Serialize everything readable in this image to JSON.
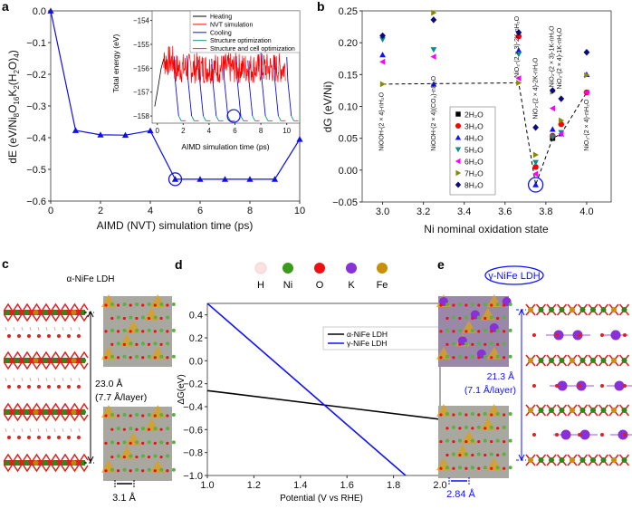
{
  "panels": {
    "a": "a",
    "b": "b",
    "c": "c",
    "d": "d",
    "e": "e"
  },
  "chart_data": [
    {
      "id": "a",
      "type": "line",
      "xlabel": "AIMD (NVT) simulation time (ps)",
      "ylabel": "dE (eV/Ni8O16K2(H2O)4)",
      "ylabel_parts": [
        "dE (eV/Ni",
        "8",
        "O",
        "16",
        "K",
        "2",
        "(H",
        "2",
        "O)",
        "4",
        ")"
      ],
      "xlim": [
        0,
        10
      ],
      "ylim": [
        -0.6,
        0.0
      ],
      "xticks": [
        "0",
        "2",
        "4",
        "6",
        "8",
        "10"
      ],
      "yticks": [
        "0.0",
        "−0.1",
        "−0.2",
        "−0.3",
        "−0.4",
        "−0.5",
        "−0.6"
      ],
      "color": "#1010e0",
      "x": [
        0,
        1,
        2,
        3,
        4,
        5,
        6,
        7,
        8,
        9,
        10
      ],
      "y": [
        0.0,
        -0.377,
        -0.391,
        -0.392,
        -0.378,
        -0.531,
        -0.531,
        -0.531,
        -0.531,
        -0.531,
        -0.405
      ],
      "highlight": {
        "x": 5,
        "y": -0.531
      },
      "inset": {
        "type": "line",
        "xlabel": "AIMD simulation time (ps)",
        "ylabel": "Total energy (eV)",
        "xlim": [
          -0.4,
          11
        ],
        "ylim": [
          -158.3,
          -153.6
        ],
        "xticks": [
          "0",
          "2",
          "4",
          "6",
          "8",
          "10"
        ],
        "yticks": [
          "−154",
          "−155",
          "−156",
          "−157",
          "−158"
        ],
        "legend": [
          {
            "label": "Heating",
            "color": "#000000"
          },
          {
            "label": "NVT simulation",
            "color": "#ff0000"
          },
          {
            "label": "Cooling",
            "color": "#1010e0"
          },
          {
            "label": "Structure optimization",
            "color": "#109090"
          },
          {
            "label": "Structure and cell optimization",
            "color": "#ff00ff"
          }
        ],
        "cycle_starts_ps": [
          1.3,
          2.3,
          3.2,
          4.2,
          5.1,
          6.1,
          7.0,
          8.0,
          9.0,
          10.0
        ],
        "nvt_mean": -156.0,
        "final_energy": -158.2,
        "highlight": {
          "x": 5.9,
          "y": -158.0
        }
      }
    },
    {
      "id": "b",
      "type": "scatter",
      "xlabel": "Ni nominal oxidation state",
      "ylabel": "dG (eV/Ni)",
      "xlim": [
        2.9,
        4.12
      ],
      "ylim": [
        -0.05,
        0.25
      ],
      "xticks": [
        "3.0",
        "3.2",
        "3.4",
        "3.6",
        "3.8",
        "4.0"
      ],
      "yticks": [
        "0.25",
        "0.20",
        "0.15",
        "0.10",
        "0.05",
        "0.00",
        "−0.05"
      ],
      "series": [
        {
          "name": "2H₂O",
          "marker": "square",
          "color": "#000000",
          "points": [
            [
              3.833,
              0.05
            ]
          ]
        },
        {
          "name": "3H₂O",
          "marker": "circle",
          "color": "#ff0000",
          "points": [
            [
              3.667,
              0.21
            ],
            [
              3.75,
              0.005
            ],
            [
              3.833,
              0.054
            ],
            [
              3.875,
              0.072
            ],
            [
              4.0,
              0.122
            ]
          ]
        },
        {
          "name": "4H₂O",
          "marker": "tri-up",
          "color": "#1010ff",
          "points": [
            [
              3.0,
              0.181
            ],
            [
              3.25,
              0.135
            ],
            [
              3.667,
              0.188
            ],
            [
              3.75,
              -0.023
            ],
            [
              3.833,
              0.064
            ],
            [
              3.875,
              0.057
            ],
            [
              4.0,
              0.15
            ]
          ]
        },
        {
          "name": "5H₂O",
          "marker": "tri-down",
          "color": "#108a8a",
          "points": [
            [
              3.0,
              0.205
            ],
            [
              3.25,
              0.189
            ],
            [
              3.667,
              0.182
            ],
            [
              3.75,
              0.012
            ],
            [
              3.833,
              0.052
            ],
            [
              3.875,
              0.059
            ]
          ]
        },
        {
          "name": "6H₂O",
          "marker": "tri-left",
          "color": "#ff00ff",
          "points": [
            [
              3.0,
              0.17
            ],
            [
              3.25,
              0.178
            ],
            [
              3.667,
              0.144
            ],
            [
              3.75,
              -0.006
            ],
            [
              3.833,
              0.097
            ],
            [
              3.875,
              0.057
            ],
            [
              4.0,
              0.122
            ]
          ]
        },
        {
          "name": "7H₂O",
          "marker": "tri-right",
          "color": "#8a8a00",
          "points": [
            [
              3.0,
              0.135
            ],
            [
              3.25,
              0.247
            ],
            [
              3.667,
              0.137
            ],
            [
              3.75,
              0.024
            ],
            [
              3.833,
              0.123
            ],
            [
              3.875,
              0.078
            ],
            [
              4.0,
              0.149
            ]
          ]
        },
        {
          "name": "8H₂O",
          "marker": "diamond",
          "color": "#0a0a80",
          "points": [
            [
              3.0,
              0.211
            ],
            [
              3.25,
              0.236
            ],
            [
              3.667,
              0.216
            ],
            [
              3.75,
              0.067
            ],
            [
              3.833,
              0.125
            ],
            [
              3.875,
              0.112
            ],
            [
              4.0,
              0.185
            ]
          ]
        }
      ],
      "hull_path": [
        [
          3.0,
          0.135
        ],
        [
          3.667,
          0.137
        ],
        [
          3.75,
          -0.023
        ],
        [
          3.833,
          0.05
        ],
        [
          3.875,
          0.057
        ],
        [
          4.0,
          0.122
        ]
      ],
      "highlight": {
        "x": 3.75,
        "y": -0.023
      },
      "annotations": [
        {
          "text": "NiOOH-(2 × 4)-nH₂O",
          "x": 2.99,
          "y": 0.03
        },
        {
          "text": "NiOOH-(2 × 4)(CO₃)-nH₂O",
          "x": 3.245,
          "y": 0.03
        },
        {
          "text": "NiO₂-(2 × 3)-2K-nH₂O",
          "x": 3.655,
          "y": 0.145
        },
        {
          "text": "NiO₂-(2 × 4)-2K-nH₂O",
          "x": 3.745,
          "y": 0.08
        },
        {
          "text": "NiO₂-(2 × 3)-1K-nH₂O",
          "x": 3.825,
          "y": 0.13
        },
        {
          "text": "NiO₂-(2 × 4)-1K-nH₂O",
          "x": 3.862,
          "y": 0.127
        },
        {
          "text": "NiO₂-(2 × 4)-nH₂O",
          "x": 3.995,
          "y": 0.03
        }
      ]
    },
    {
      "id": "d",
      "type": "line",
      "xlabel": "Potential (V vs RHE)",
      "ylabel": "ΔG(eV)",
      "xlim": [
        1.0,
        2.0
      ],
      "ylim": [
        -1.0,
        0.5
      ],
      "xticks": [
        "1.0",
        "1.2",
        "1.4",
        "1.6",
        "1.8",
        "2.0"
      ],
      "yticks": [
        "0.4",
        "0.2",
        "0.0",
        "−0.2",
        "−0.4",
        "−0.6",
        "−0.8",
        "−1.0"
      ],
      "series": [
        {
          "name": "α-NiFe LDH",
          "color": "#000000",
          "x": [
            1.0,
            2.0
          ],
          "y": [
            -0.26,
            -0.51
          ]
        },
        {
          "name": "γ-NiFe LDH",
          "color": "#1010ff",
          "x": [
            1.0,
            1.852
          ],
          "y": [
            0.5,
            -1.0
          ]
        }
      ],
      "legend_position": "upper-right"
    }
  ],
  "element_legend": [
    {
      "label": "H",
      "color": "#fde0e0"
    },
    {
      "label": "Ni",
      "color": "#3a9a1a"
    },
    {
      "label": "O",
      "color": "#ee1010"
    },
    {
      "label": "K",
      "color": "#8a30d8"
    },
    {
      "label": "Fe",
      "color": "#c8900a"
    }
  ],
  "panel_c": {
    "title": "α-NiFe LDH",
    "spacing": "23.0 Å",
    "per_layer": "(7.7 Å/layer)",
    "lattice": "3.1 Å"
  },
  "panel_e": {
    "title": "γ-NiFe LDH",
    "spacing": "21.3 Å",
    "per_layer": "(7.1 Å/layer)",
    "lattice": "2.84 Å"
  }
}
